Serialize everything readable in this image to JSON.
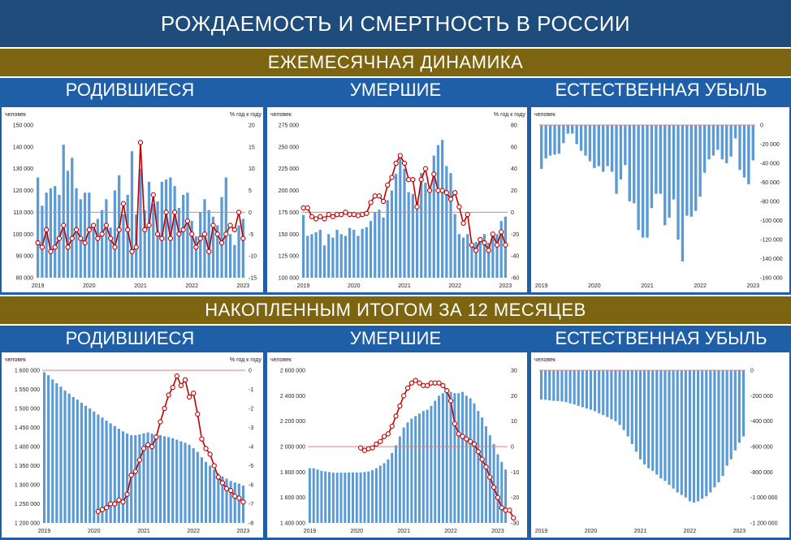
{
  "header": {
    "title": "РОЖДАЕМОСТЬ И СМЕРТНОСТЬ В РОССИИ"
  },
  "sections": [
    {
      "label": "ЕЖЕМЕСЯЧНАЯ ДИНАМИКА"
    },
    {
      "label": "НАКОПЛЕННЫМ ИТОГОМ ЗА 12 МЕСЯЦЕВ"
    }
  ],
  "columns": {
    "births": "РОДИВШИЕСЯ",
    "deaths": "УМЕРШИЕ",
    "decline": "ЕСТЕСТВЕННАЯ УБЫЛЬ"
  },
  "colors": {
    "bars": "#5b9bd5",
    "line": "#c00000",
    "marker_fill": "#ffffff",
    "ref_line": "#e08080"
  },
  "chart_data": [
    {
      "id": "monthly-births",
      "type": "bar+line",
      "left_axis_title": "человек",
      "right_axis_title": "% год к году",
      "ylim": [
        80000,
        150000
      ],
      "yticks": [
        80000,
        90000,
        100000,
        110000,
        120000,
        130000,
        140000,
        150000
      ],
      "ytick_labels": [
        "80 000",
        "90 000",
        "100 000",
        "110 000",
        "120 000",
        "130 000",
        "140 000",
        "150 000"
      ],
      "y2lim": [
        -15,
        20
      ],
      "y2ticks": [
        -15,
        -10,
        -5,
        0,
        5,
        10,
        15,
        20
      ],
      "y2tick_labels": [
        "-15",
        "-10",
        "-5",
        "0",
        "5",
        "10",
        "15",
        "20"
      ],
      "x_labels": [
        "2019",
        "2020",
        "2021",
        "2022",
        "2023"
      ],
      "values": [
        126000,
        113000,
        119000,
        121000,
        122000,
        118000,
        141000,
        129000,
        135000,
        121000,
        116000,
        119000,
        119000,
        104000,
        107000,
        111000,
        116000,
        103000,
        120000,
        127000,
        109000,
        118000,
        138000,
        109000,
        130000,
        111000,
        124000,
        114000,
        115000,
        124000,
        125000,
        126000,
        122000,
        112000,
        118000,
        119000,
        106000,
        99000,
        110000,
        116000,
        111000,
        108000,
        104000,
        117000,
        126000,
        100000,
        95000,
        104000,
        107000
      ],
      "line_start": 0,
      "line": [
        -7,
        -8,
        -4,
        -9,
        -8,
        -6,
        -3,
        -8,
        -6,
        -4,
        -6,
        -7,
        -4,
        -3,
        -6,
        -5,
        -3,
        -6,
        -8,
        -4,
        2,
        -4,
        -9,
        -8,
        16,
        -4,
        -3,
        4,
        -5,
        -6,
        0,
        -6,
        0,
        -5,
        -4,
        -2,
        -5,
        -8,
        -6,
        -5,
        -9,
        -3,
        -5,
        -7,
        -5,
        -3,
        -4,
        0,
        -6
      ]
    },
    {
      "id": "monthly-deaths",
      "type": "bar+line",
      "left_axis_title": "человек",
      "right_axis_title": "% год к году",
      "ylim": [
        100000,
        275000
      ],
      "yticks": [
        100000,
        125000,
        150000,
        175000,
        200000,
        225000,
        250000,
        275000
      ],
      "ytick_labels": [
        "100 000",
        "125 000",
        "150 000",
        "175 000",
        "200 000",
        "225 000",
        "250 000",
        "275 000"
      ],
      "y2lim": [
        -60,
        80
      ],
      "y2ticks": [
        -60,
        -40,
        -20,
        0,
        20,
        40,
        60,
        80
      ],
      "y2tick_labels": [
        "-60",
        "-40",
        "-20",
        "0",
        "20",
        "40",
        "60",
        "80"
      ],
      "x_labels": [
        "2019",
        "2020",
        "2021",
        "2022",
        "2023"
      ],
      "values": [
        172000,
        148000,
        150000,
        152000,
        155000,
        137000,
        150000,
        146000,
        155000,
        150000,
        148000,
        157000,
        155000,
        148000,
        156000,
        158000,
        165000,
        175000,
        178000,
        169000,
        189000,
        200000,
        219000,
        237000,
        225000,
        198000,
        196000,
        186000,
        220000,
        209000,
        202000,
        240000,
        252000,
        258000,
        228000,
        220000,
        173000,
        150000,
        146000,
        150000,
        138000,
        141000,
        145000,
        150000,
        140000,
        148000,
        150000,
        165000,
        170000
      ],
      "line_start": 0,
      "line": [
        4,
        4,
        -4,
        -6,
        -4,
        -6,
        -2,
        -4,
        -2,
        -2,
        0,
        -2,
        -2,
        -3,
        -2,
        -1,
        9,
        15,
        15,
        10,
        25,
        32,
        45,
        52,
        45,
        30,
        30,
        5,
        30,
        40,
        20,
        35,
        20,
        20,
        18,
        12,
        18,
        5,
        -10,
        -2,
        -30,
        -35,
        -25,
        -28,
        -35,
        -20,
        -30,
        -18,
        -30
      ]
    },
    {
      "id": "monthly-decline",
      "type": "bar",
      "left_axis_title": "человек",
      "ylim": [
        -160000,
        0
      ],
      "yticks": [
        0,
        -20000,
        -40000,
        -60000,
        -80000,
        -100000,
        -120000,
        -140000,
        -160000
      ],
      "ytick_labels": [
        "0",
        "-20 000",
        "-40 000",
        "-60 000",
        "-80 000",
        "-100 000",
        "-120 000",
        "-140 000",
        "-160 000"
      ],
      "axis_side": "right",
      "x_labels": [
        "2019",
        "2020",
        "2021",
        "2022",
        "2023"
      ],
      "values": [
        -46000,
        -35000,
        -32000,
        -31000,
        -30000,
        -19000,
        -9000,
        -9000,
        -20000,
        -27000,
        -32000,
        -38000,
        -45000,
        -43000,
        -49000,
        -43000,
        -49000,
        -72000,
        -57000,
        -42000,
        -80000,
        -82000,
        -110000,
        -118000,
        -118000,
        -87000,
        -72000,
        -72000,
        -105000,
        -97000,
        -78000,
        -120000,
        -143000,
        -95000,
        -96000,
        -90000,
        -75000,
        -50000,
        -36000,
        -32000,
        -26000,
        -36000,
        -40000,
        -33000,
        -14000,
        -47000,
        -55000,
        -62000,
        -37000
      ]
    },
    {
      "id": "cumulative-births",
      "type": "bar+line",
      "left_axis_title": "человек",
      "right_axis_title": "% год к году",
      "ylim": [
        1200000,
        1600000
      ],
      "yticks": [
        1200000,
        1250000,
        1300000,
        1350000,
        1400000,
        1450000,
        1500000,
        1550000,
        1600000
      ],
      "ytick_labels": [
        "1 200 000",
        "1 250 000",
        "1 300 000",
        "1 350 000",
        "1 400 000",
        "1 450 000",
        "1 500 000",
        "1 550 000",
        "1 600 000"
      ],
      "y2lim": [
        -8,
        0
      ],
      "y2ticks": [
        -8,
        -7,
        -6,
        -5,
        -4,
        -3,
        -2,
        -1,
        0
      ],
      "y2tick_labels": [
        "-8",
        "-7",
        "-6",
        "-5",
        "-4",
        "-3",
        "-2",
        "-1",
        "0"
      ],
      "x_labels": [
        "2019",
        "2020",
        "2021",
        "2022",
        "2023"
      ],
      "values": [
        1595000,
        1587000,
        1576000,
        1566000,
        1557000,
        1547000,
        1539000,
        1530000,
        1523000,
        1515000,
        1507000,
        1500000,
        1492000,
        1484000,
        1476000,
        1468000,
        1461000,
        1454000,
        1447000,
        1440000,
        1434000,
        1430000,
        1430000,
        1432000,
        1435000,
        1437000,
        1434000,
        1432000,
        1430000,
        1427000,
        1425000,
        1422000,
        1418000,
        1414000,
        1410000,
        1405000,
        1396000,
        1386000,
        1372000,
        1360000,
        1350000,
        1340000,
        1330000,
        1322000,
        1316000,
        1310000,
        1306000,
        1303000,
        1298000
      ],
      "line_start": 13,
      "line": [
        -7.4,
        -7.3,
        -7.2,
        -7.0,
        -7.0,
        -6.8,
        -6.9,
        -6.5,
        -5.5,
        -5.3,
        -4.7,
        -4.1,
        -3.9,
        -4.0,
        -3.5,
        -2.7,
        -2.0,
        -1.3,
        -0.9,
        -0.3,
        -0.8,
        -0.5,
        -1.4,
        -1.2,
        -2.3,
        -3.6,
        -4.1,
        -4.4,
        -5.0,
        -5.6,
        -5.9,
        -6.2,
        -6.3,
        -6.6,
        -6.7,
        -6.9
      ]
    },
    {
      "id": "cumulative-deaths",
      "type": "bar+line",
      "left_axis_title": "человек",
      "ylim": [
        1400000,
        2600000
      ],
      "yticks": [
        1400000,
        1600000,
        1800000,
        2000000,
        2200000,
        2400000,
        2600000
      ],
      "ytick_labels": [
        "1 400 000",
        "1 600 000",
        "1 800 000",
        "2 000 000",
        "2 200 000",
        "2 400 000",
        "2 600 000"
      ],
      "y2lim": [
        -30,
        30
      ],
      "y2ticks": [
        -30,
        -20,
        -10,
        0,
        10,
        20,
        30
      ],
      "y2tick_labels": [
        "-30",
        "-20",
        "-10",
        "0",
        "10",
        "20",
        "30"
      ],
      "x_labels": [
        "2019",
        "2020",
        "2021",
        "2022",
        "2023"
      ],
      "values": [
        1830000,
        1830000,
        1820000,
        1810000,
        1805000,
        1800000,
        1795000,
        1795000,
        1795000,
        1795000,
        1797000,
        1797000,
        1797000,
        1797000,
        1800000,
        1805000,
        1815000,
        1830000,
        1850000,
        1870000,
        1900000,
        1950000,
        2010000,
        2080000,
        2150000,
        2190000,
        2220000,
        2240000,
        2260000,
        2280000,
        2290000,
        2320000,
        2360000,
        2400000,
        2420000,
        2440000,
        2430000,
        2420000,
        2420000,
        2430000,
        2400000,
        2380000,
        2340000,
        2280000,
        2230000,
        2160000,
        2090000,
        2020000,
        1940000,
        1880000,
        1820000
      ],
      "line_start": 13,
      "line": [
        -0.5,
        -1.5,
        -0.8,
        -0.5,
        1,
        2,
        4,
        5,
        8,
        12,
        16,
        20,
        23,
        25,
        26,
        25,
        24,
        24,
        25,
        25,
        25,
        24,
        22,
        18,
        9,
        5,
        4,
        3,
        2,
        1,
        -2,
        -5,
        -8,
        -12,
        -16,
        -20,
        -24,
        -25,
        -25,
        -28
      ]
    },
    {
      "id": "cumulative-decline",
      "type": "bar",
      "left_axis_title": "человек",
      "ylim": [
        -1200000,
        0
      ],
      "yticks": [
        0,
        -200000,
        -400000,
        -600000,
        -800000,
        -1000000,
        -1200000
      ],
      "ytick_labels": [
        "0",
        "-200 000",
        "-400 000",
        "-600 000",
        "-800 000",
        "-1 000 000",
        "-1 200 000"
      ],
      "axis_side": "right",
      "x_labels": [
        "2019",
        "2020",
        "2021",
        "2022",
        "2023"
      ],
      "values": [
        -230000,
        -232000,
        -236000,
        -240000,
        -242000,
        -245000,
        -250000,
        -260000,
        -268000,
        -280000,
        -290000,
        -300000,
        -310000,
        -322000,
        -338000,
        -352000,
        -368000,
        -385000,
        -400000,
        -430000,
        -470000,
        -520000,
        -580000,
        -640000,
        -700000,
        -740000,
        -770000,
        -790000,
        -820000,
        -850000,
        -870000,
        -900000,
        -930000,
        -960000,
        -980000,
        -1000000,
        -1030000,
        -1040000,
        -1030000,
        -1010000,
        -990000,
        -960000,
        -920000,
        -880000,
        -830000,
        -750000,
        -700000,
        -630000,
        -570000,
        -520000
      ]
    }
  ]
}
